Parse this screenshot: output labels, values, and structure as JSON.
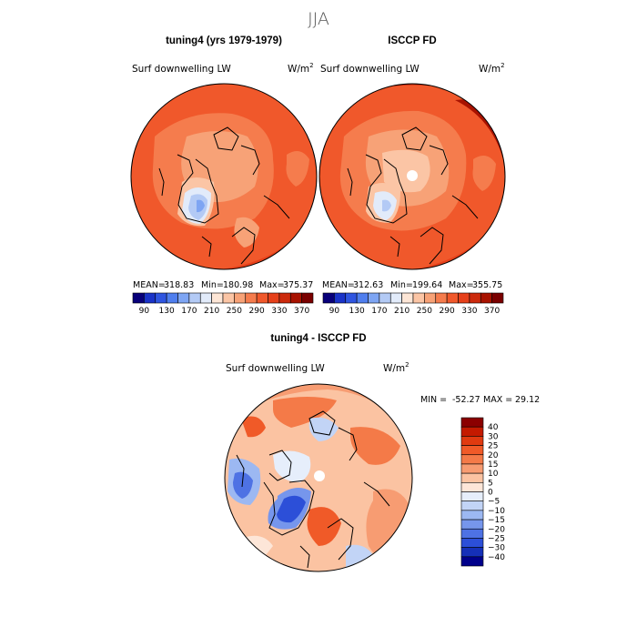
{
  "chart_data": [
    {
      "type": "heatmap",
      "projection": "north-polar-stereographic",
      "title": "tuning4 (yrs 1979-1979)",
      "field_label": "Surf downwelling LW",
      "units_base": "W/m",
      "units_exp": "2",
      "stats": {
        "mean_label": "MEAN=",
        "mean": "318.83",
        "min_label": "Min=",
        "min": "180.98",
        "max_label": "Max=",
        "max": "375.37"
      },
      "colorbar": {
        "orientation": "horizontal",
        "tick_labels": [
          "90",
          "130",
          "170",
          "210",
          "250",
          "290",
          "330",
          "370"
        ],
        "colors": [
          "#08007a",
          "#1a33c8",
          "#2f55e0",
          "#4f7eee",
          "#7ea5f3",
          "#b3caf5",
          "#e2ebfa",
          "#fde6d6",
          "#fbc5a5",
          "#f7a277",
          "#f57c4d",
          "#f0582b",
          "#e6401a",
          "#cc2a0c",
          "#a81200",
          "#7a0000"
        ]
      }
    },
    {
      "type": "heatmap",
      "projection": "north-polar-stereographic",
      "title": "ISCCP FD",
      "field_label": "Surf downwelling LW",
      "units_base": "W/m",
      "units_exp": "2",
      "stats": {
        "mean_label": "MEAN=",
        "mean": "312.63",
        "min_label": "Min=",
        "min": "199.64",
        "max_label": "Max=",
        "max": "355.75"
      },
      "colorbar": {
        "orientation": "horizontal",
        "tick_labels": [
          "90",
          "130",
          "170",
          "210",
          "250",
          "290",
          "330",
          "370"
        ],
        "colors": [
          "#08007a",
          "#1a33c8",
          "#2f55e0",
          "#4f7eee",
          "#7ea5f3",
          "#b3caf5",
          "#e2ebfa",
          "#fde6d6",
          "#fbc5a5",
          "#f7a277",
          "#f57c4d",
          "#f0582b",
          "#e6401a",
          "#cc2a0c",
          "#a81200",
          "#7a0000"
        ]
      }
    },
    {
      "type": "heatmap",
      "projection": "north-polar-stereographic",
      "title": "tuning4 - ISCCP FD",
      "field_label": "Surf downwelling LW",
      "units_base": "W/m",
      "units_exp": "2",
      "stats": {
        "min_label": "MIN =",
        "min": "-52.27",
        "max_label": "MAX =",
        "max": "29.12"
      },
      "colorbar": {
        "orientation": "vertical",
        "tick_labels": [
          "40",
          "30",
          "25",
          "20",
          "15",
          "10",
          "5",
          "0",
          "−5",
          "−10",
          "−15",
          "−20",
          "−25",
          "−30",
          "−40"
        ],
        "colors": [
          "#8b0000",
          "#c41a00",
          "#e03a10",
          "#f05a28",
          "#f47a48",
          "#f79c72",
          "#fbc3a2",
          "#fde6d8",
          "#e6eefb",
          "#c2d4f6",
          "#9cb8f2",
          "#7696ec",
          "#4e72e4",
          "#2c4fd8",
          "#1530b8",
          "#00008b"
        ]
      }
    }
  ],
  "figure": {
    "season_title": "JJA"
  }
}
